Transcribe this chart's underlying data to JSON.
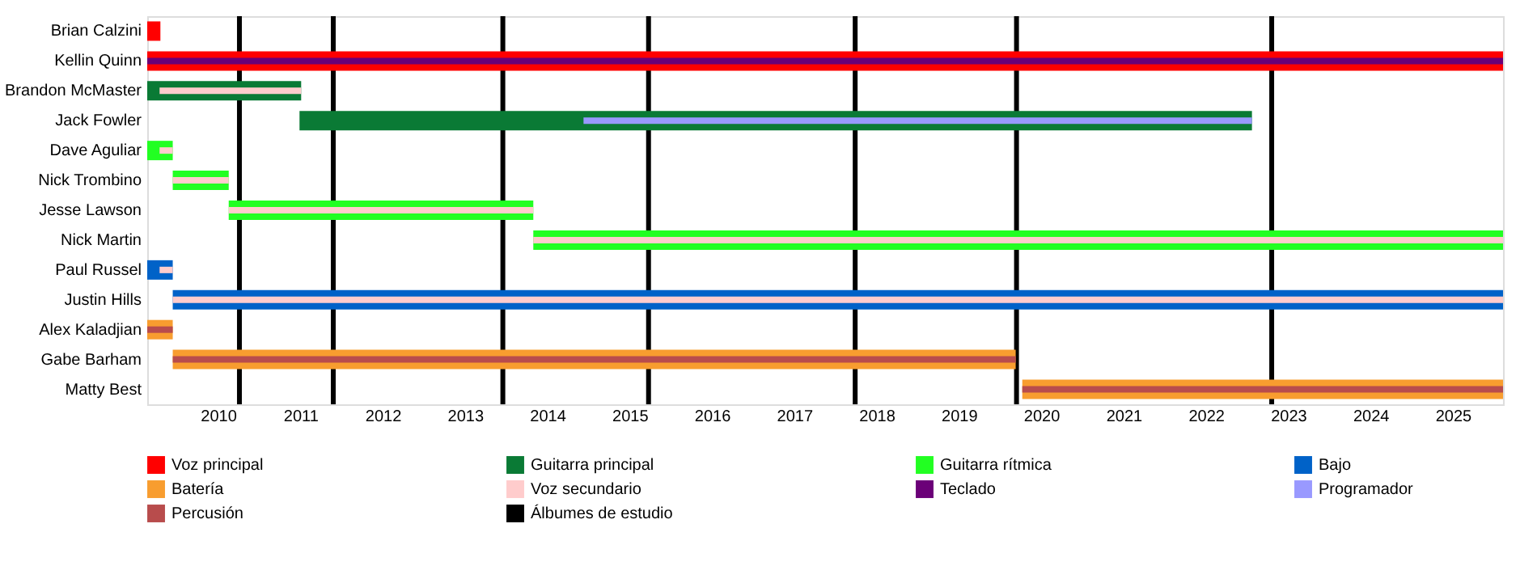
{
  "chart_data": {
    "type": "bar",
    "orientation": "horizontal",
    "legend": "bottom",
    "grid": false,
    "categories": [
      "Brian Calzini",
      "Kellin Quinn",
      "Brandon McMaster",
      "Jack Fowler",
      "Dave Aguliar",
      "Nick Trombino",
      "Jesse Lawson",
      "Nick Martin",
      "Paul Russel",
      "Justin Hills",
      "Alex Kaladjian",
      "Gabe Barham",
      "Matty Best"
    ],
    "xlim": [
      2009.14,
      2025.61
    ],
    "xticks": [
      2010,
      2011,
      2012,
      2013,
      2014,
      2015,
      2016,
      2017,
      2018,
      2019,
      2020,
      2021,
      2022,
      2023,
      2024,
      2025
    ],
    "series": [
      {
        "name": "Voz principal",
        "color": "#ff0000",
        "base": [
          2009.14,
          2009.14,
          null,
          null,
          null,
          null,
          null,
          null,
          null,
          null,
          null,
          null,
          null
        ],
        "values": [
          0.16,
          16.47,
          null,
          null,
          null,
          null,
          null,
          null,
          null,
          null,
          null,
          null,
          null
        ]
      },
      {
        "name": "Guitarra principal",
        "color": "#0a7a35",
        "base": [
          null,
          null,
          2009.14,
          2010.99,
          null,
          null,
          null,
          null,
          null,
          null,
          null,
          null,
          null
        ],
        "values": [
          null,
          null,
          1.87,
          11.57,
          null,
          null,
          null,
          null,
          null,
          null,
          null,
          null,
          null
        ]
      },
      {
        "name": "Guitarra rítmica",
        "color": "#22ff22",
        "base": [
          null,
          null,
          null,
          null,
          2009.14,
          2009.45,
          2010.13,
          2013.83,
          null,
          null,
          null,
          null,
          null
        ],
        "values": [
          null,
          null,
          null,
          null,
          0.31,
          0.68,
          3.7,
          11.78,
          null,
          null,
          null,
          null,
          null
        ]
      },
      {
        "name": "Bajo",
        "color": "#0062c8",
        "base": [
          null,
          null,
          null,
          null,
          null,
          null,
          null,
          null,
          2009.14,
          2009.45,
          null,
          null,
          null
        ],
        "values": [
          null,
          null,
          null,
          null,
          null,
          null,
          null,
          null,
          0.31,
          16.16,
          null,
          null,
          null
        ]
      },
      {
        "name": "Batería",
        "color": "#f89d2f",
        "base": [
          null,
          null,
          null,
          null,
          null,
          null,
          null,
          null,
          null,
          null,
          2009.14,
          2009.45,
          2019.77
        ],
        "values": [
          null,
          null,
          null,
          null,
          null,
          null,
          null,
          null,
          null,
          null,
          0.31,
          10.24,
          5.84
        ]
      },
      {
        "name": "Voz secundario",
        "color": "#ffcccc",
        "base": [
          null,
          null,
          2009.29,
          null,
          2009.29,
          2009.45,
          2010.13,
          2013.83,
          2009.29,
          2009.45,
          null,
          null,
          null
        ],
        "values": [
          null,
          null,
          1.72,
          null,
          0.16,
          0.68,
          3.7,
          11.78,
          0.16,
          16.16,
          null,
          null,
          null
        ]
      },
      {
        "name": "Teclado",
        "color": "#6b0078",
        "base": [
          null,
          2009.14,
          null,
          null,
          null,
          null,
          null,
          null,
          null,
          null,
          null,
          null,
          null
        ],
        "values": [
          null,
          16.47,
          null,
          null,
          null,
          null,
          null,
          null,
          null,
          null,
          null,
          null,
          null
        ]
      },
      {
        "name": "Programador",
        "color": "#9999ff",
        "base": [
          null,
          null,
          null,
          2014.44,
          null,
          null,
          null,
          null,
          null,
          null,
          null,
          null,
          null
        ],
        "values": [
          null,
          null,
          null,
          8.12,
          null,
          null,
          null,
          null,
          null,
          null,
          null,
          null,
          null
        ]
      },
      {
        "name": "Percusión",
        "color": "#b84c4c",
        "base": [
          null,
          null,
          null,
          null,
          null,
          null,
          null,
          null,
          null,
          null,
          2009.14,
          2009.45,
          2019.77
        ],
        "values": [
          null,
          null,
          null,
          null,
          null,
          null,
          null,
          null,
          null,
          null,
          0.31,
          10.24,
          5.84
        ]
      }
    ],
    "ref_lines": [
      {
        "axis": "x",
        "value": 2010.26,
        "label": "Álbumes de estudio",
        "color": "#000000"
      },
      {
        "axis": "x",
        "value": 2011.4
      },
      {
        "axis": "x",
        "value": 2013.46
      },
      {
        "axis": "x",
        "value": 2015.23
      },
      {
        "axis": "x",
        "value": 2017.74
      },
      {
        "axis": "x",
        "value": 2019.7
      },
      {
        "axis": "x",
        "value": 2022.8
      }
    ]
  }
}
